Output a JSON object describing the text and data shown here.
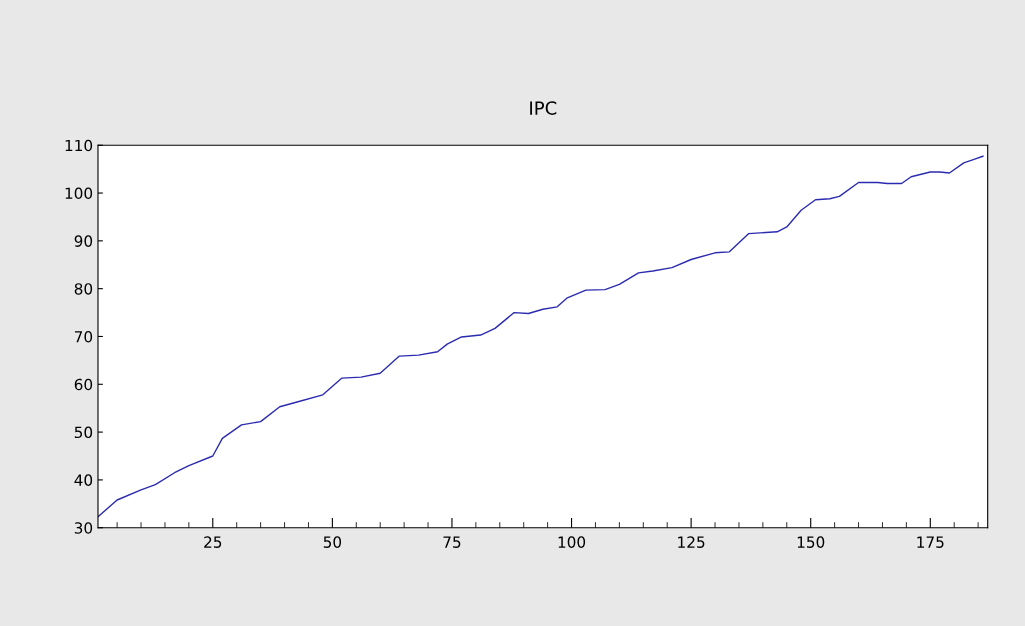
{
  "chart_data": {
    "type": "line",
    "title": "IPC",
    "x": [
      1,
      5,
      10,
      13,
      17,
      20,
      25,
      27,
      31,
      35,
      39,
      43,
      48,
      52,
      56,
      60,
      64,
      68,
      72,
      74,
      77,
      81,
      84,
      88,
      91,
      94,
      97,
      99,
      103,
      107,
      110,
      114,
      117,
      121,
      125,
      130,
      133,
      137,
      143,
      145,
      148,
      151,
      154,
      156,
      160,
      164,
      166,
      169,
      171,
      175,
      177,
      179,
      182,
      184,
      186
    ],
    "series": [
      {
        "color": "#2b2bb0",
        "values": [
          32.3,
          35.8,
          37.9,
          39.0,
          41.5,
          43.0,
          45.0,
          48.7,
          51.5,
          52.2,
          55.3,
          56.4,
          57.8,
          61.3,
          61.5,
          62.3,
          65.9,
          66.1,
          66.8,
          68.4,
          69.9,
          70.3,
          71.7,
          75.0,
          74.8,
          75.7,
          76.2,
          78.0,
          79.7,
          79.8,
          80.9,
          83.3,
          83.7,
          84.4,
          86.1,
          87.5,
          87.7,
          91.5,
          91.9,
          92.9,
          96.4,
          98.6,
          98.8,
          99.3,
          102.2,
          102.2,
          102.0,
          102.0,
          103.4,
          104.4,
          104.4,
          104.2,
          106.3,
          107.0,
          107.7
        ]
      }
    ],
    "xlim": [
      1,
      187
    ],
    "xticks": [
      25,
      50,
      75,
      100,
      125,
      150,
      175
    ],
    "ylim": [
      30,
      110
    ],
    "yticks": [
      30,
      40,
      50,
      60,
      70,
      80,
      90,
      100,
      110
    ],
    "grid": false,
    "legend": false,
    "line_style": "solid"
  }
}
